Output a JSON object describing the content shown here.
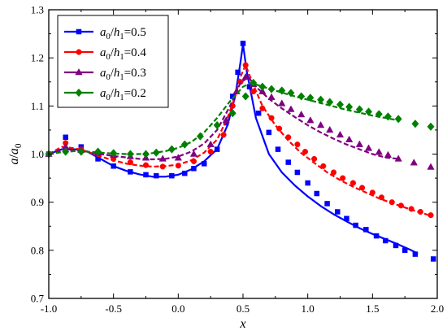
{
  "chart_data": {
    "type": "line",
    "xlabel_parts": [
      {
        "t": "x",
        "i": true
      }
    ],
    "ylabel_parts": [
      {
        "t": "a",
        "i": true,
        "s": ""
      },
      {
        "t": "/",
        "i": false,
        "s": ""
      },
      {
        "t": "a",
        "i": true,
        "s": ""
      },
      {
        "t": "0",
        "i": false,
        "s": "sub"
      }
    ],
    "xlim": [
      -1.0,
      2.0
    ],
    "ylim": [
      0.7,
      1.3
    ],
    "xticks": [
      "-1.0",
      "-0.5",
      "0.0",
      "0.5",
      "1.0",
      "1.5",
      "2.0"
    ],
    "yticks": [
      "0.7",
      "0.8",
      "0.9",
      "1.0",
      "1.1",
      "1.2",
      "1.3"
    ],
    "legend_position": "top-left",
    "grid": false,
    "series": [
      {
        "name_parts": [
          {
            "t": "a",
            "i": true,
            "s": ""
          },
          {
            "t": "0",
            "i": false,
            "s": "sub"
          },
          {
            "t": "/",
            "i": false,
            "s": ""
          },
          {
            "t": "h",
            "i": true,
            "s": ""
          },
          {
            "t": "1",
            "i": false,
            "s": "sub"
          },
          {
            "t": "=0.5",
            "i": false,
            "s": ""
          }
        ],
        "color": "#0000ff",
        "marker": "square",
        "line": {
          "x": [
            -1.0,
            -0.9,
            -0.8,
            -0.7,
            -0.6,
            -0.5,
            -0.4,
            -0.3,
            -0.2,
            -0.1,
            0.0,
            0.1,
            0.2,
            0.3,
            0.38,
            0.44,
            0.48,
            0.5,
            0.53,
            0.6,
            0.7,
            0.8,
            0.9,
            1.0,
            1.1,
            1.2,
            1.3,
            1.4,
            1.5,
            1.6,
            1.7,
            1.8,
            1.85
          ],
          "y": [
            1.0,
            1.01,
            1.01,
            1.005,
            0.99,
            0.975,
            0.965,
            0.958,
            0.953,
            0.953,
            0.957,
            0.968,
            0.985,
            1.01,
            1.06,
            1.12,
            1.19,
            1.228,
            1.17,
            1.075,
            1.0,
            0.962,
            0.935,
            0.912,
            0.892,
            0.875,
            0.86,
            0.846,
            0.834,
            0.823,
            0.812,
            0.8,
            0.793
          ]
        },
        "markers": {
          "x": [
            -1.0,
            -0.87,
            -0.75,
            -0.62,
            -0.5,
            -0.37,
            -0.25,
            -0.17,
            -0.05,
            0.05,
            0.12,
            0.2,
            0.3,
            0.37,
            0.42,
            0.46,
            0.5,
            0.55,
            0.62,
            0.7,
            0.77,
            0.85,
            0.92,
            1.0,
            1.07,
            1.15,
            1.23,
            1.3,
            1.37,
            1.45,
            1.53,
            1.6,
            1.68,
            1.75,
            1.83,
            1.97
          ],
          "y": [
            1.0,
            1.035,
            1.015,
            0.99,
            0.975,
            0.963,
            0.957,
            0.955,
            0.955,
            0.96,
            0.97,
            0.98,
            1.01,
            1.065,
            1.12,
            1.17,
            1.23,
            1.14,
            1.085,
            1.045,
            1.01,
            0.983,
            0.962,
            0.94,
            0.918,
            0.897,
            0.88,
            0.866,
            0.852,
            0.843,
            0.83,
            0.82,
            0.81,
            0.8,
            0.792,
            0.782
          ]
        }
      },
      {
        "name_parts": [
          {
            "t": "a",
            "i": true,
            "s": ""
          },
          {
            "t": "0",
            "i": false,
            "s": "sub"
          },
          {
            "t": "/",
            "i": false,
            "s": ""
          },
          {
            "t": "h",
            "i": true,
            "s": ""
          },
          {
            "t": "1",
            "i": false,
            "s": "sub"
          },
          {
            "t": "=0.4",
            "i": false,
            "s": ""
          }
        ],
        "color": "#ff0000",
        "marker": "circle",
        "line": {
          "x": [
            -1.0,
            -0.9,
            -0.8,
            -0.7,
            -0.6,
            -0.5,
            -0.4,
            -0.3,
            -0.2,
            -0.1,
            0.0,
            0.1,
            0.2,
            0.3,
            0.38,
            0.44,
            0.48,
            0.52,
            0.57,
            0.65,
            0.75,
            0.85,
            0.95,
            1.05,
            1.15,
            1.25,
            1.35,
            1.45,
            1.55,
            1.65,
            1.75,
            1.85,
            1.95
          ],
          "y": [
            1.0,
            1.015,
            1.012,
            1.005,
            0.995,
            0.987,
            0.98,
            0.976,
            0.974,
            0.975,
            0.978,
            0.987,
            1.003,
            1.03,
            1.075,
            1.12,
            1.16,
            1.185,
            1.15,
            1.1,
            1.06,
            1.028,
            1.002,
            0.982,
            0.962,
            0.946,
            0.932,
            0.92,
            0.908,
            0.898,
            0.889,
            0.88,
            0.872
          ]
        },
        "markers": {
          "x": [
            -1.0,
            -0.87,
            -0.75,
            -0.62,
            -0.5,
            -0.37,
            -0.25,
            -0.12,
            0.0,
            0.12,
            0.25,
            0.35,
            0.42,
            0.48,
            0.52,
            0.58,
            0.65,
            0.72,
            0.78,
            0.85,
            0.92,
            0.98,
            1.05,
            1.12,
            1.2,
            1.27,
            1.35,
            1.42,
            1.5,
            1.57,
            1.65,
            1.72,
            1.8,
            1.87,
            1.95
          ],
          "y": [
            1.0,
            1.023,
            1.01,
            1.0,
            0.99,
            0.983,
            0.977,
            0.974,
            0.976,
            0.985,
            1.005,
            1.04,
            1.1,
            1.15,
            1.185,
            1.13,
            1.095,
            1.075,
            1.053,
            1.035,
            1.02,
            1.005,
            0.99,
            0.975,
            0.962,
            0.95,
            0.94,
            0.93,
            0.92,
            0.91,
            0.9,
            0.893,
            0.886,
            0.88,
            0.873
          ]
        }
      },
      {
        "name_parts": [
          {
            "t": "a",
            "i": true,
            "s": ""
          },
          {
            "t": "0",
            "i": false,
            "s": "sub"
          },
          {
            "t": "/",
            "i": false,
            "s": ""
          },
          {
            "t": "h",
            "i": true,
            "s": ""
          },
          {
            "t": "1",
            "i": false,
            "s": "sub"
          },
          {
            "t": "=0.3",
            "i": false,
            "s": ""
          }
        ],
        "color": "#800080",
        "marker": "triangle",
        "line": {
          "x": [
            -1.0,
            -0.9,
            -0.8,
            -0.7,
            -0.6,
            -0.5,
            -0.4,
            -0.3,
            -0.2,
            -0.1,
            0.0,
            0.1,
            0.2,
            0.3,
            0.4,
            0.48,
            0.54,
            0.6,
            0.7,
            0.8,
            0.9,
            1.0,
            1.1,
            1.2,
            1.3,
            1.4,
            1.5,
            1.6,
            1.7
          ],
          "y": [
            1.0,
            1.008,
            1.008,
            1.005,
            1.0,
            0.996,
            0.993,
            0.99,
            0.989,
            0.99,
            0.995,
            1.005,
            1.022,
            1.05,
            1.1,
            1.148,
            1.16,
            1.14,
            1.115,
            1.095,
            1.077,
            1.06,
            1.045,
            1.032,
            1.02,
            1.01,
            1.0,
            0.993,
            0.99
          ]
        },
        "markers": {
          "x": [
            -1.0,
            -0.87,
            -0.75,
            -0.62,
            -0.5,
            -0.37,
            -0.25,
            -0.12,
            0.0,
            0.12,
            0.25,
            0.37,
            0.45,
            0.52,
            0.58,
            0.65,
            0.72,
            0.8,
            0.87,
            0.95,
            1.02,
            1.1,
            1.17,
            1.25,
            1.32,
            1.4,
            1.47,
            1.55,
            1.62,
            1.7,
            1.82,
            1.95
          ],
          "y": [
            1.0,
            1.015,
            1.008,
            1.002,
            0.998,
            0.995,
            0.992,
            0.99,
            0.992,
            1.0,
            1.02,
            1.07,
            1.13,
            1.16,
            1.145,
            1.13,
            1.118,
            1.105,
            1.093,
            1.082,
            1.07,
            1.06,
            1.05,
            1.04,
            1.03,
            1.02,
            1.012,
            1.004,
            0.998,
            0.99,
            0.982,
            0.973
          ]
        }
      },
      {
        "name_parts": [
          {
            "t": "a",
            "i": true,
            "s": ""
          },
          {
            "t": "0",
            "i": false,
            "s": "sub"
          },
          {
            "t": "/",
            "i": false,
            "s": ""
          },
          {
            "t": "h",
            "i": true,
            "s": ""
          },
          {
            "t": "1",
            "i": false,
            "s": "sub"
          },
          {
            "t": "=0.2",
            "i": false,
            "s": ""
          }
        ],
        "color": "#008000",
        "marker": "diamond",
        "line": {
          "x": [
            -1.0,
            -0.9,
            -0.8,
            -0.7,
            -0.6,
            -0.5,
            -0.4,
            -0.3,
            -0.2,
            -0.1,
            0.0,
            0.1,
            0.2,
            0.3,
            0.4,
            0.5,
            0.56,
            0.62,
            0.7,
            0.8,
            0.9,
            1.0,
            1.1,
            1.2,
            1.3,
            1.4,
            1.5,
            1.6,
            1.7
          ],
          "y": [
            1.0,
            1.004,
            1.006,
            1.005,
            1.003,
            1.001,
            1.0,
            1.0,
            1.002,
            1.006,
            1.013,
            1.025,
            1.045,
            1.075,
            1.11,
            1.14,
            1.148,
            1.143,
            1.136,
            1.128,
            1.12,
            1.113,
            1.106,
            1.099,
            1.092,
            1.086,
            1.08,
            1.075,
            1.07
          ]
        },
        "markers": {
          "x": [
            -1.0,
            -0.87,
            -0.75,
            -0.62,
            -0.5,
            -0.37,
            -0.25,
            -0.17,
            -0.05,
            0.05,
            0.17,
            0.3,
            0.42,
            0.52,
            0.58,
            0.65,
            0.72,
            0.8,
            0.87,
            0.95,
            1.02,
            1.1,
            1.17,
            1.25,
            1.32,
            1.4,
            1.47,
            1.55,
            1.62,
            1.7,
            1.83,
            1.95
          ],
          "y": [
            1.0,
            1.005,
            1.005,
            1.005,
            1.002,
            1.0,
            1.0,
            1.003,
            1.01,
            1.02,
            1.037,
            1.06,
            1.085,
            1.12,
            1.148,
            1.14,
            1.135,
            1.132,
            1.127,
            1.12,
            1.117,
            1.113,
            1.108,
            1.103,
            1.098,
            1.093,
            1.088,
            1.083,
            1.078,
            1.073,
            1.063,
            1.057
          ]
        }
      }
    ]
  }
}
